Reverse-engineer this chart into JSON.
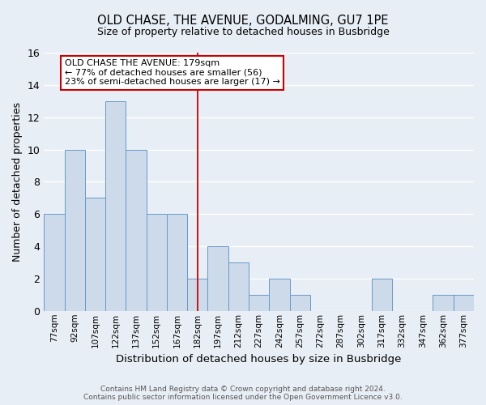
{
  "title": "OLD CHASE, THE AVENUE, GODALMING, GU7 1PE",
  "subtitle": "Size of property relative to detached houses in Busbridge",
  "xlabel": "Distribution of detached houses by size in Busbridge",
  "ylabel": "Number of detached properties",
  "bin_labels": [
    "77sqm",
    "92sqm",
    "107sqm",
    "122sqm",
    "137sqm",
    "152sqm",
    "167sqm",
    "182sqm",
    "197sqm",
    "212sqm",
    "227sqm",
    "242sqm",
    "257sqm",
    "272sqm",
    "287sqm",
    "302sqm",
    "317sqm",
    "332sqm",
    "347sqm",
    "362sqm",
    "377sqm"
  ],
  "bar_heights": [
    6,
    10,
    7,
    13,
    10,
    6,
    6,
    2,
    4,
    3,
    1,
    2,
    1,
    0,
    0,
    0,
    2,
    0,
    0,
    1,
    1
  ],
  "bar_color": "#ccdaea",
  "bar_edge_color": "#6699cc",
  "highlight_index": 7,
  "highlight_line_color": "#cc0000",
  "annotation_line1": "OLD CHASE THE AVENUE: 179sqm",
  "annotation_line2": "← 77% of detached houses are smaller (56)",
  "annotation_line3": "23% of semi-detached houses are larger (17) →",
  "annotation_box_color": "#ffffff",
  "annotation_box_edge_color": "#cc0000",
  "ylim": [
    0,
    16
  ],
  "yticks": [
    0,
    2,
    4,
    6,
    8,
    10,
    12,
    14,
    16
  ],
  "footer_text": "Contains HM Land Registry data © Crown copyright and database right 2024.\nContains public sector information licensed under the Open Government Licence v3.0.",
  "background_color": "#e8eef5",
  "grid_color": "#ffffff"
}
